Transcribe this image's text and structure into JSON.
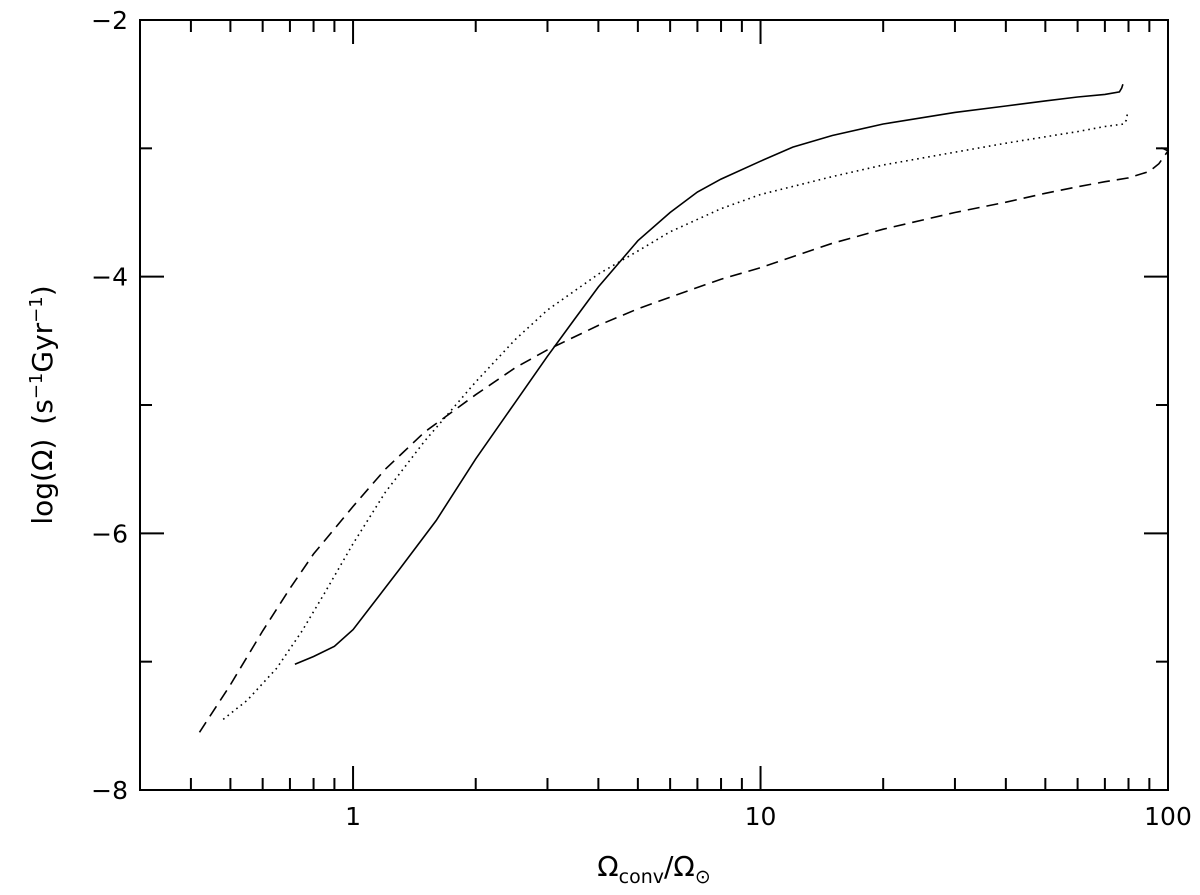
{
  "chart_data": {
    "type": "line",
    "xscale": "log",
    "xlim": [
      0.3,
      100
    ],
    "ylim": [
      -8,
      -2
    ],
    "x_ticks": [
      1,
      10,
      100
    ],
    "x_tick_labels": [
      "1",
      "10",
      "100"
    ],
    "y_ticks": [
      -8,
      -6,
      -4,
      -2
    ],
    "y_tick_labels": [
      "−8",
      "−6",
      "−4",
      "−2"
    ],
    "xlabel": "Ω_conv/Ω_⊙",
    "xlabel_parts": {
      "main": "Ω",
      "sub1": "conv",
      "slash": "/Ω",
      "sub2": "⊙"
    },
    "ylabel": "log(Ω̇)  (s⁻¹Gyr⁻¹)",
    "ylabel_parts": {
      "open": "log(",
      "omega": "Ω",
      "close": ")",
      "units_open": "(s",
      "sup1": "−1",
      "mid": "Gyr",
      "sup2": "−1",
      "units_close": ")"
    },
    "grid": false,
    "legend": "none",
    "series": [
      {
        "line_style": "solid",
        "x": [
          0.72,
          0.8,
          0.9,
          1.0,
          1.1,
          1.3,
          1.6,
          2.0,
          2.5,
          3.0,
          3.5,
          4.0,
          5.0,
          6.0,
          7.0,
          8.0,
          10.0,
          12.0,
          15.0,
          20.0,
          30.0,
          40.0,
          50.0,
          60.0,
          70.0,
          76.0,
          77.0,
          77.5
        ],
        "y": [
          -7.02,
          -6.96,
          -6.88,
          -6.75,
          -6.58,
          -6.28,
          -5.9,
          -5.42,
          -4.98,
          -4.62,
          -4.33,
          -4.08,
          -3.72,
          -3.5,
          -3.34,
          -3.24,
          -3.1,
          -2.99,
          -2.9,
          -2.81,
          -2.72,
          -2.67,
          -2.63,
          -2.6,
          -2.58,
          -2.56,
          -2.53,
          -2.5
        ]
      },
      {
        "line_style": "dotted",
        "x": [
          0.48,
          0.55,
          0.65,
          0.75,
          0.85,
          1.0,
          1.2,
          1.5,
          2.0,
          2.5,
          3.0,
          4.0,
          5.0,
          6.0,
          8.0,
          10.0,
          15.0,
          20.0,
          30.0,
          40.0,
          50.0,
          60.0,
          70.0,
          78.0,
          79.0,
          79.5
        ],
        "y": [
          -7.45,
          -7.3,
          -7.05,
          -6.76,
          -6.47,
          -6.08,
          -5.68,
          -5.28,
          -4.82,
          -4.49,
          -4.26,
          -3.98,
          -3.8,
          -3.65,
          -3.47,
          -3.36,
          -3.22,
          -3.13,
          -3.03,
          -2.96,
          -2.91,
          -2.87,
          -2.83,
          -2.81,
          -2.78,
          -2.73
        ]
      },
      {
        "line_style": "dashed",
        "x": [
          0.42,
          0.5,
          0.6,
          0.7,
          0.8,
          1.0,
          1.2,
          1.5,
          2.0,
          2.5,
          3.0,
          4.0,
          5.0,
          6.0,
          8.0,
          10.0,
          15.0,
          20.0,
          30.0,
          40.0,
          50.0,
          60.0,
          70.0,
          80.0,
          90.0,
          95.0,
          98.0,
          100.0,
          97.0,
          93.0
        ],
        "y": [
          -7.55,
          -7.18,
          -6.76,
          -6.43,
          -6.16,
          -5.79,
          -5.5,
          -5.21,
          -4.92,
          -4.71,
          -4.57,
          -4.38,
          -4.25,
          -4.16,
          -4.02,
          -3.93,
          -3.74,
          -3.63,
          -3.5,
          -3.42,
          -3.35,
          -3.3,
          -3.26,
          -3.23,
          -3.18,
          -3.12,
          -3.06,
          -3.02,
          -3.0,
          -2.99
        ]
      }
    ]
  }
}
